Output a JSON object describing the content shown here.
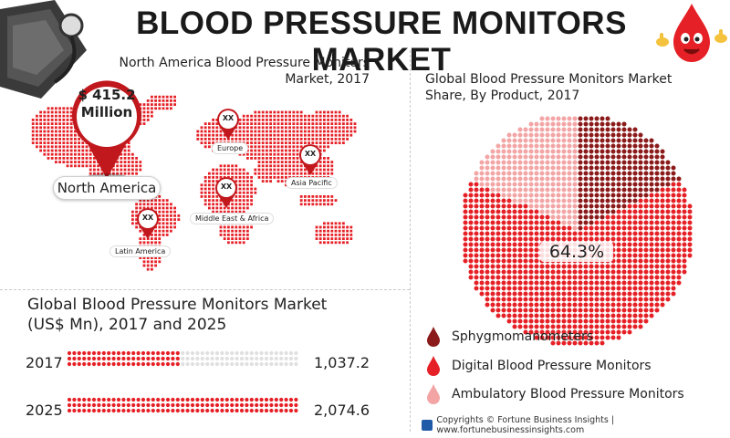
{
  "title": "BLOOD PRESSURE MONITORS MARKET",
  "map_panel": {
    "caption_line1": "North America Blood Pressure Monitors",
    "caption_line2": "Market, 2017",
    "north_america": {
      "label": "North America",
      "value_line1": "$ 415.2",
      "value_line2": "Million"
    },
    "regions": [
      {
        "name": "Europe",
        "value": "XX"
      },
      {
        "name": "Asia Pacific",
        "value": "XX"
      },
      {
        "name": "Middle East & Africa",
        "value": "XX"
      },
      {
        "name": "Latin America",
        "value": "XX"
      }
    ]
  },
  "chart_data": [
    {
      "type": "bar",
      "title": "Global Blood Pressure Monitors Market (US$ Mn), 2017 and 2025",
      "title_line1": "Global Blood Pressure Monitors Market",
      "title_line2": "(US$ Mn), 2017 and 2025",
      "categories": [
        "2017",
        "2025"
      ],
      "values": [
        1037.2,
        2074.6
      ],
      "value_labels": [
        "1,037.2",
        "2,074.6"
      ],
      "xlim": [
        0,
        2074.6
      ],
      "orientation": "horizontal"
    },
    {
      "type": "pie",
      "title": "Global Blood Pressure Monitors Market Share, By Product, 2017",
      "title_line1": "Global Blood Pressure Monitors Market",
      "title_line2": "Share, By Product, 2017",
      "labels": [
        "Sphygmomanometers",
        "Digital Blood Pressure Monitors",
        "Ambulatory Blood Pressure Monitors"
      ],
      "values": [
        17.7,
        64.3,
        18.0
      ],
      "shown_label": "64.3%",
      "colors": [
        "#8b1a1a",
        "#e52026",
        "#f3a5a5"
      ],
      "legend_position": "bottom"
    }
  ],
  "colors": {
    "primary_red": "#e52026",
    "dark_red": "#8b1a1a",
    "light_red": "#f3a5a5",
    "empty_dot": "#e0e0e0"
  },
  "footer": {
    "icon": "fortune-logo-icon",
    "text": "Copyrights © Fortune Business Insights | www.fortunebusinessinsights.com"
  }
}
